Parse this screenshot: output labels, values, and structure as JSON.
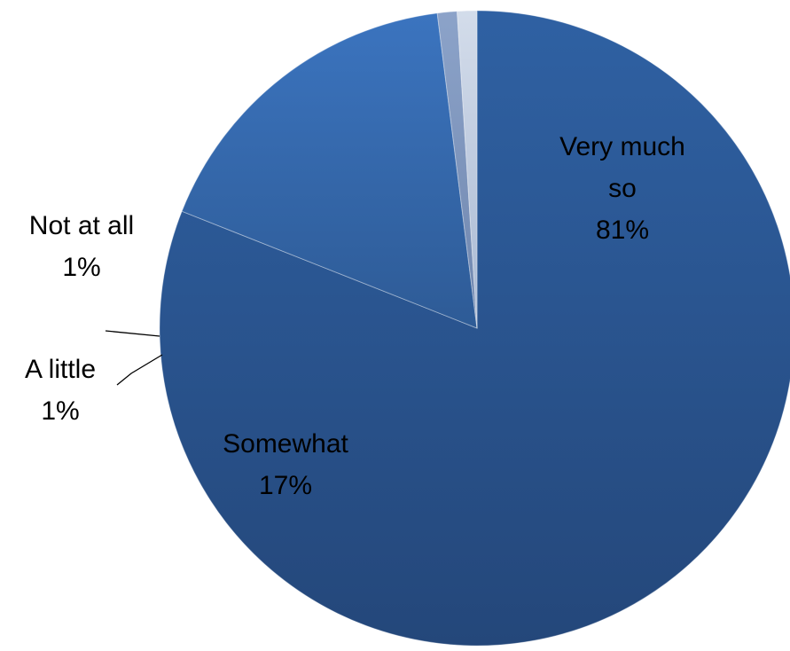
{
  "chart_data": {
    "type": "pie",
    "title": "",
    "slices": [
      {
        "label": "Very much so",
        "value": 81,
        "value_label": "81%",
        "label_lines": [
          "Very much",
          "so",
          "81%"
        ],
        "color": "#2b5592"
      },
      {
        "label": "Somewhat",
        "value": 17,
        "value_label": "17%",
        "label_lines": [
          "Somewhat",
          "17%"
        ],
        "color": "#3a6aaa"
      },
      {
        "label": "A little",
        "value": 1,
        "value_label": "1%",
        "label_lines": [
          "A little",
          "1%"
        ],
        "color": "#7f96bd"
      },
      {
        "label": "Not at all",
        "value": 1,
        "value_label": "1%",
        "label_lines": [
          "Not at all",
          "1%"
        ],
        "color": "#b7c5dc"
      }
    ],
    "legend": "none"
  }
}
